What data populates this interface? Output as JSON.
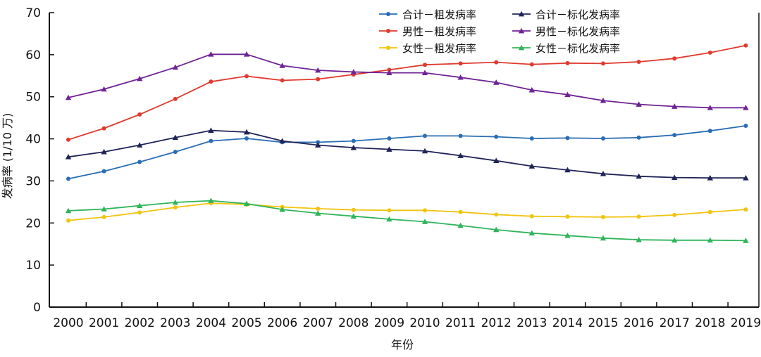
{
  "chart_data": {
    "type": "line",
    "title": "",
    "xlabel": "年份",
    "ylabel": "发病率 (1/10 万)",
    "ylim": [
      0,
      70
    ],
    "yticks": [
      0,
      10,
      20,
      30,
      40,
      50,
      60,
      70
    ],
    "grid": false,
    "legend_position": "top-center",
    "categories": [
      "2000",
      "2001",
      "2002",
      "2003",
      "2004",
      "2005",
      "2006",
      "2007",
      "2008",
      "2009",
      "2010",
      "2011",
      "2012",
      "2013",
      "2014",
      "2015",
      "2016",
      "2017",
      "2018",
      "2019"
    ],
    "series": [
      {
        "name": "合计－粗发病率",
        "color": "#2a6db4",
        "marker": "circle",
        "values": [
          30.5,
          32.3,
          34.5,
          36.9,
          39.5,
          40.1,
          39.2,
          39.2,
          39.5,
          40.1,
          40.7,
          40.7,
          40.5,
          40.1,
          40.2,
          40.1,
          40.3,
          40.9,
          41.9,
          43.1
        ]
      },
      {
        "name": "合计－标化发病率",
        "color": "#1f2356",
        "marker": "triangle",
        "values": [
          35.7,
          36.9,
          38.5,
          40.3,
          42.0,
          41.6,
          39.5,
          38.5,
          37.9,
          37.5,
          37.1,
          36.0,
          34.8,
          33.5,
          32.6,
          31.7,
          31.1,
          30.8,
          30.7,
          30.7
        ]
      },
      {
        "name": "男性－粗发病率",
        "color": "#e03a2f",
        "marker": "circle",
        "values": [
          39.8,
          42.5,
          45.8,
          49.5,
          53.6,
          54.9,
          53.9,
          54.2,
          55.3,
          56.4,
          57.6,
          57.9,
          58.2,
          57.7,
          58.0,
          57.9,
          58.3,
          59.1,
          60.5,
          62.2
        ]
      },
      {
        "name": "男性－标化发病率",
        "color": "#6f2394",
        "marker": "triangle",
        "values": [
          49.8,
          51.8,
          54.3,
          57.0,
          60.1,
          60.1,
          57.4,
          56.3,
          55.9,
          55.7,
          55.7,
          54.6,
          53.4,
          51.6,
          50.5,
          49.1,
          48.2,
          47.7,
          47.4,
          47.4
        ]
      },
      {
        "name": "女性－粗发病率",
        "color": "#f1c40f",
        "marker": "circle",
        "values": [
          20.6,
          21.4,
          22.5,
          23.7,
          24.7,
          24.4,
          23.8,
          23.4,
          23.1,
          23.0,
          23.0,
          22.6,
          22.0,
          21.6,
          21.5,
          21.4,
          21.5,
          21.9,
          22.6,
          23.2
        ]
      },
      {
        "name": "女性－标化发病率",
        "color": "#2fb45a",
        "marker": "triangle",
        "values": [
          22.9,
          23.3,
          24.1,
          24.9,
          25.3,
          24.6,
          23.2,
          22.3,
          21.6,
          20.9,
          20.3,
          19.4,
          18.4,
          17.6,
          17.0,
          16.4,
          16.0,
          15.9,
          15.9,
          15.8
        ]
      }
    ]
  }
}
